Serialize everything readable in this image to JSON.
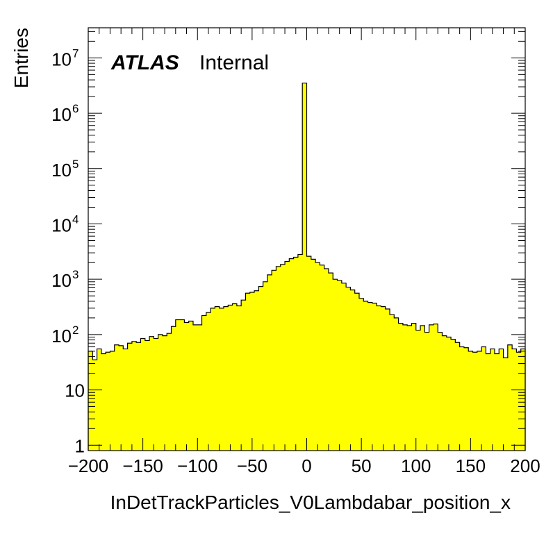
{
  "chart_data": {
    "type": "histogram",
    "xlabel": "InDetTrackParticles_V0Lambdabar_position_x",
    "ylabel": "Entries",
    "label_bold": "ATLAS",
    "label_text": "Internal",
    "xlim": [
      -200,
      200
    ],
    "ylim": [
      0.8,
      35000000
    ],
    "yscale": "log",
    "bin_width": 4,
    "x_ticks": [
      "−200",
      "−150",
      "−100",
      "−50",
      "0",
      "50",
      "100",
      "150",
      "200"
    ],
    "x_tick_values": [
      -200,
      -150,
      -100,
      -50,
      0,
      50,
      100,
      150,
      200
    ],
    "y_ticks": [
      {
        "value": 1,
        "base": "1",
        "exp": ""
      },
      {
        "value": 10,
        "base": "10",
        "exp": ""
      },
      {
        "value": 100,
        "base": "10",
        "exp": "2"
      },
      {
        "value": 1000,
        "base": "10",
        "exp": "3"
      },
      {
        "value": 10000,
        "base": "10",
        "exp": "4"
      },
      {
        "value": 100000,
        "base": "10",
        "exp": "5"
      },
      {
        "value": 1000000,
        "base": "10",
        "exp": "6"
      },
      {
        "value": 10000000,
        "base": "10",
        "exp": "7"
      }
    ],
    "fill_color": "#ffff00",
    "line_color": "#000000",
    "bin_edges_start": -200,
    "values": [
      50,
      35,
      55,
      45,
      48,
      50,
      65,
      63,
      55,
      70,
      75,
      72,
      85,
      78,
      92,
      85,
      100,
      95,
      105,
      140,
      185,
      185,
      165,
      175,
      150,
      150,
      220,
      250,
      300,
      320,
      300,
      320,
      340,
      360,
      330,
      420,
      560,
      580,
      620,
      740,
      900,
      1200,
      1450,
      1700,
      1850,
      2100,
      2350,
      2500,
      2800,
      3500000,
      2600,
      2300,
      2000,
      1800,
      1550,
      1300,
      1000,
      950,
      850,
      720,
      640,
      560,
      450,
      400,
      380,
      370,
      330,
      320,
      290,
      230,
      200,
      160,
      150,
      145,
      160,
      120,
      145,
      110,
      150,
      155,
      110,
      95,
      90,
      82,
      72,
      60,
      58,
      50,
      48,
      50,
      60,
      45,
      55,
      45,
      55,
      38,
      65,
      55,
      48,
      55
    ]
  }
}
